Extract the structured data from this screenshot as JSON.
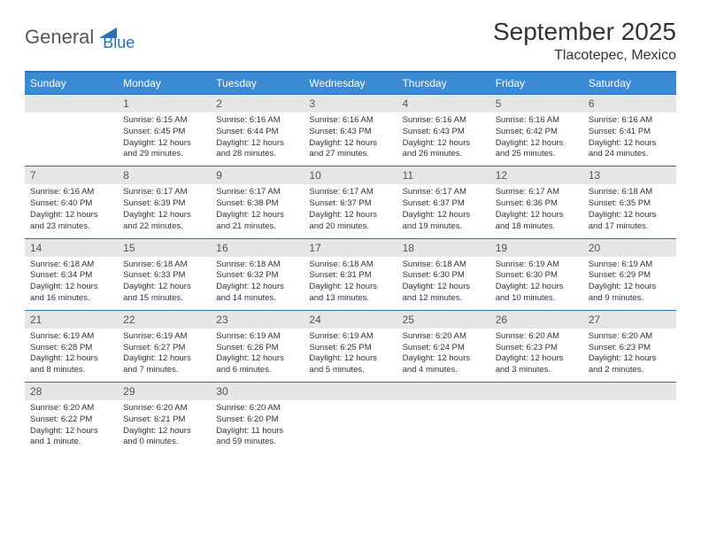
{
  "brand": {
    "part1": "General",
    "part2": "Blue"
  },
  "title": "September 2025",
  "location": "Tlacotepec, Mexico",
  "colors": {
    "header_bg": "#3b8bd4",
    "header_text": "#ffffff",
    "daynum_bg": "#e6e6e6",
    "border": "#2d6fb5",
    "logo_gray": "#555555",
    "logo_blue": "#2d6fb5"
  },
  "dayNames": [
    "Sunday",
    "Monday",
    "Tuesday",
    "Wednesday",
    "Thursday",
    "Friday",
    "Saturday"
  ],
  "weeks": [
    [
      {
        "n": "",
        "sr": "",
        "ss": "",
        "dl": ""
      },
      {
        "n": "1",
        "sr": "Sunrise: 6:15 AM",
        "ss": "Sunset: 6:45 PM",
        "dl": "Daylight: 12 hours and 29 minutes."
      },
      {
        "n": "2",
        "sr": "Sunrise: 6:16 AM",
        "ss": "Sunset: 6:44 PM",
        "dl": "Daylight: 12 hours and 28 minutes."
      },
      {
        "n": "3",
        "sr": "Sunrise: 6:16 AM",
        "ss": "Sunset: 6:43 PM",
        "dl": "Daylight: 12 hours and 27 minutes."
      },
      {
        "n": "4",
        "sr": "Sunrise: 6:16 AM",
        "ss": "Sunset: 6:43 PM",
        "dl": "Daylight: 12 hours and 26 minutes."
      },
      {
        "n": "5",
        "sr": "Sunrise: 6:16 AM",
        "ss": "Sunset: 6:42 PM",
        "dl": "Daylight: 12 hours and 25 minutes."
      },
      {
        "n": "6",
        "sr": "Sunrise: 6:16 AM",
        "ss": "Sunset: 6:41 PM",
        "dl": "Daylight: 12 hours and 24 minutes."
      }
    ],
    [
      {
        "n": "7",
        "sr": "Sunrise: 6:16 AM",
        "ss": "Sunset: 6:40 PM",
        "dl": "Daylight: 12 hours and 23 minutes."
      },
      {
        "n": "8",
        "sr": "Sunrise: 6:17 AM",
        "ss": "Sunset: 6:39 PM",
        "dl": "Daylight: 12 hours and 22 minutes."
      },
      {
        "n": "9",
        "sr": "Sunrise: 6:17 AM",
        "ss": "Sunset: 6:38 PM",
        "dl": "Daylight: 12 hours and 21 minutes."
      },
      {
        "n": "10",
        "sr": "Sunrise: 6:17 AM",
        "ss": "Sunset: 6:37 PM",
        "dl": "Daylight: 12 hours and 20 minutes."
      },
      {
        "n": "11",
        "sr": "Sunrise: 6:17 AM",
        "ss": "Sunset: 6:37 PM",
        "dl": "Daylight: 12 hours and 19 minutes."
      },
      {
        "n": "12",
        "sr": "Sunrise: 6:17 AM",
        "ss": "Sunset: 6:36 PM",
        "dl": "Daylight: 12 hours and 18 minutes."
      },
      {
        "n": "13",
        "sr": "Sunrise: 6:18 AM",
        "ss": "Sunset: 6:35 PM",
        "dl": "Daylight: 12 hours and 17 minutes."
      }
    ],
    [
      {
        "n": "14",
        "sr": "Sunrise: 6:18 AM",
        "ss": "Sunset: 6:34 PM",
        "dl": "Daylight: 12 hours and 16 minutes."
      },
      {
        "n": "15",
        "sr": "Sunrise: 6:18 AM",
        "ss": "Sunset: 6:33 PM",
        "dl": "Daylight: 12 hours and 15 minutes."
      },
      {
        "n": "16",
        "sr": "Sunrise: 6:18 AM",
        "ss": "Sunset: 6:32 PM",
        "dl": "Daylight: 12 hours and 14 minutes."
      },
      {
        "n": "17",
        "sr": "Sunrise: 6:18 AM",
        "ss": "Sunset: 6:31 PM",
        "dl": "Daylight: 12 hours and 13 minutes."
      },
      {
        "n": "18",
        "sr": "Sunrise: 6:18 AM",
        "ss": "Sunset: 6:30 PM",
        "dl": "Daylight: 12 hours and 12 minutes."
      },
      {
        "n": "19",
        "sr": "Sunrise: 6:19 AM",
        "ss": "Sunset: 6:30 PM",
        "dl": "Daylight: 12 hours and 10 minutes."
      },
      {
        "n": "20",
        "sr": "Sunrise: 6:19 AM",
        "ss": "Sunset: 6:29 PM",
        "dl": "Daylight: 12 hours and 9 minutes."
      }
    ],
    [
      {
        "n": "21",
        "sr": "Sunrise: 6:19 AM",
        "ss": "Sunset: 6:28 PM",
        "dl": "Daylight: 12 hours and 8 minutes."
      },
      {
        "n": "22",
        "sr": "Sunrise: 6:19 AM",
        "ss": "Sunset: 6:27 PM",
        "dl": "Daylight: 12 hours and 7 minutes."
      },
      {
        "n": "23",
        "sr": "Sunrise: 6:19 AM",
        "ss": "Sunset: 6:26 PM",
        "dl": "Daylight: 12 hours and 6 minutes."
      },
      {
        "n": "24",
        "sr": "Sunrise: 6:19 AM",
        "ss": "Sunset: 6:25 PM",
        "dl": "Daylight: 12 hours and 5 minutes."
      },
      {
        "n": "25",
        "sr": "Sunrise: 6:20 AM",
        "ss": "Sunset: 6:24 PM",
        "dl": "Daylight: 12 hours and 4 minutes."
      },
      {
        "n": "26",
        "sr": "Sunrise: 6:20 AM",
        "ss": "Sunset: 6:23 PM",
        "dl": "Daylight: 12 hours and 3 minutes."
      },
      {
        "n": "27",
        "sr": "Sunrise: 6:20 AM",
        "ss": "Sunset: 6:23 PM",
        "dl": "Daylight: 12 hours and 2 minutes."
      }
    ],
    [
      {
        "n": "28",
        "sr": "Sunrise: 6:20 AM",
        "ss": "Sunset: 6:22 PM",
        "dl": "Daylight: 12 hours and 1 minute."
      },
      {
        "n": "29",
        "sr": "Sunrise: 6:20 AM",
        "ss": "Sunset: 6:21 PM",
        "dl": "Daylight: 12 hours and 0 minutes."
      },
      {
        "n": "30",
        "sr": "Sunrise: 6:20 AM",
        "ss": "Sunset: 6:20 PM",
        "dl": "Daylight: 11 hours and 59 minutes."
      },
      {
        "n": "",
        "sr": "",
        "ss": "",
        "dl": ""
      },
      {
        "n": "",
        "sr": "",
        "ss": "",
        "dl": ""
      },
      {
        "n": "",
        "sr": "",
        "ss": "",
        "dl": ""
      },
      {
        "n": "",
        "sr": "",
        "ss": "",
        "dl": ""
      }
    ]
  ]
}
